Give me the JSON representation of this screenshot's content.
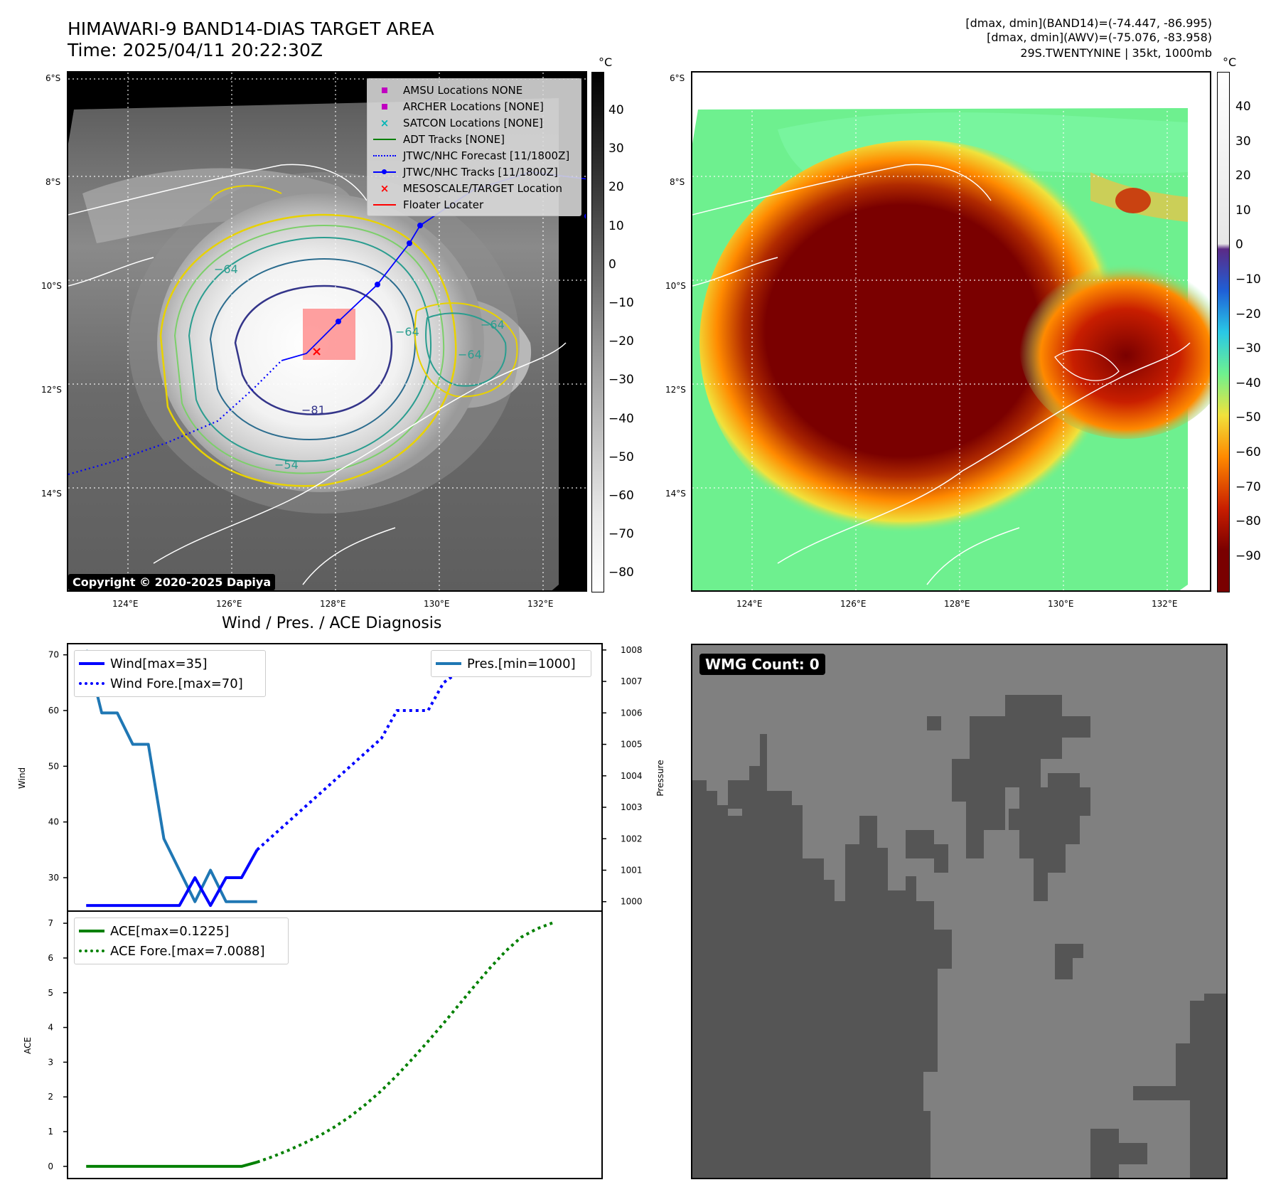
{
  "header": {
    "title_line1": "HIMAWARI-9 BAND14-DIAS TARGET AREA",
    "title_line2": "Time: 2025/04/11 20:22:30Z",
    "info_line1": "[dmax, dmin](BAND14)=(-74.447, -86.995)",
    "info_line2": "[dmax, dmin](AWV)=(-75.076, -83.958)",
    "info_line3": "29S.TWENTYNINE | 35kt, 1000mb"
  },
  "map": {
    "lat_labels": [
      "6°S",
      "8°S",
      "10°S",
      "12°S",
      "14°S"
    ],
    "lon_labels": [
      "124°E",
      "126°E",
      "128°E",
      "130°E",
      "132°E"
    ],
    "unit": "°C",
    "copyright": "Copyright © 2020-2025 Dapiya",
    "contour_labels": [
      "−64",
      "−64",
      "−64",
      "−54",
      "−81",
      "−64",
      "−64"
    ],
    "legend": [
      {
        "label": "AMSU Locations NONE",
        "symbol": "square",
        "color": "#c000c0"
      },
      {
        "label": "ARCHER Locations [NONE]",
        "symbol": "square",
        "color": "#c000c0"
      },
      {
        "label": "SATCON Locations [NONE]",
        "symbol": "x",
        "color": "#00b5b5"
      },
      {
        "label": "ADT Tracks [NONE]",
        "symbol": "line",
        "color": "#008000"
      },
      {
        "label": "JTWC/NHC Forecast [11/1800Z]",
        "symbol": "dotted",
        "color": "#0000ff"
      },
      {
        "label": "JTWC/NHC Tracks [11/1800Z]",
        "symbol": "line-dot",
        "color": "#0000ff"
      },
      {
        "label": "MESOSCALE/TARGET Location",
        "symbol": "x",
        "color": "#ff0000"
      },
      {
        "label": "Floater Locater",
        "symbol": "line",
        "color": "#ff0000"
      }
    ]
  },
  "colorbar_gray": {
    "ticks": [
      "40",
      "30",
      "20",
      "10",
      "0",
      "−10",
      "−20",
      "−30",
      "−40",
      "−50",
      "−60",
      "−70",
      "−80"
    ]
  },
  "colorbar_color": {
    "ticks": [
      "40",
      "30",
      "20",
      "10",
      "0",
      "−10",
      "−20",
      "−30",
      "−40",
      "−50",
      "−60",
      "−70",
      "−80",
      "−90"
    ],
    "colors": {
      "top": "#ffffff",
      "zero": "#5b2a86",
      "blue": "#1f5fd6",
      "cyan": "#29c8e6",
      "green": "#6ef08f",
      "yellow": "#f0e23c",
      "orange": "#ff8a00",
      "red": "#c81e00",
      "darkred": "#7a0000"
    }
  },
  "wmg": {
    "label": "WMG Count: 0",
    "colors": {
      "light": "#808080",
      "dark": "#555555"
    }
  },
  "chart_data": [
    {
      "type": "line",
      "title": "Wind / Pres. / ACE Diagnosis",
      "ylabel": "Wind",
      "ylabel_right": "Pressure",
      "ylim": [
        24,
        72
      ],
      "ylim_right": [
        999.7,
        1008.2
      ],
      "yticks": [
        30,
        40,
        50,
        60,
        70
      ],
      "yticks_right": [
        1000,
        1001,
        1002,
        1003,
        1004,
        1005,
        1006,
        1007,
        1008
      ],
      "x": [
        0,
        1,
        2,
        3,
        4,
        5,
        6,
        7,
        8,
        9,
        10,
        11,
        12,
        13,
        14,
        15,
        16,
        17,
        18,
        19,
        20,
        21,
        22,
        23,
        24,
        25,
        26,
        27,
        28,
        29,
        30
      ],
      "series": [
        {
          "name": "Wind[max=35]",
          "axis": "left",
          "style": "solid",
          "color": "#0000ff",
          "x": [
            0,
            1,
            2,
            3,
            4,
            5,
            6,
            7,
            8,
            9,
            10,
            11
          ],
          "values": [
            25,
            25,
            25,
            25,
            25,
            25,
            25,
            30,
            25,
            30,
            30,
            35
          ]
        },
        {
          "name": "Wind Fore.[max=70]",
          "axis": "left",
          "style": "dotted",
          "color": "#0000ff",
          "x": [
            11,
            12,
            13,
            14,
            15,
            16,
            17,
            18,
            19,
            20,
            21,
            22,
            23,
            24,
            25,
            26,
            27,
            28,
            29,
            30
          ],
          "values": [
            35,
            37.5,
            40,
            42.5,
            45,
            47.5,
            50,
            52.5,
            55,
            60,
            60,
            60,
            65,
            67,
            69,
            70,
            70,
            70,
            70,
            67
          ]
        },
        {
          "name": "Pres.[min=1000]",
          "axis": "right",
          "style": "solid",
          "color": "#1f77b4",
          "x": [
            0,
            1,
            2,
            3,
            4,
            5,
            6,
            7,
            8,
            9,
            10,
            11
          ],
          "values": [
            1008,
            1006,
            1006,
            1005,
            1005,
            1002,
            1001,
            1000,
            1001,
            1000,
            1000,
            1000
          ]
        }
      ]
    },
    {
      "type": "line",
      "ylabel": "ACE",
      "ylim": [
        -0.35,
        7.35
      ],
      "yticks": [
        0,
        1,
        2,
        3,
        4,
        5,
        6,
        7
      ],
      "series": [
        {
          "name": "ACE[max=0.1225]",
          "style": "solid",
          "color": "#008000",
          "x": [
            0,
            1,
            2,
            3,
            4,
            5,
            6,
            7,
            8,
            9,
            10,
            11
          ],
          "values": [
            0,
            0,
            0,
            0,
            0,
            0,
            0,
            0,
            0,
            0,
            0,
            0.1225
          ]
        },
        {
          "name": "ACE Fore.[max=7.0088]",
          "style": "dotted",
          "color": "#008000",
          "x": [
            11,
            12,
            13,
            14,
            15,
            16,
            17,
            18,
            19,
            20,
            21,
            22,
            23,
            24,
            25,
            26,
            27,
            28,
            29,
            30
          ],
          "values": [
            0.1225,
            0.28,
            0.46,
            0.66,
            0.88,
            1.14,
            1.44,
            1.79,
            2.18,
            2.62,
            3.1,
            3.6,
            4.12,
            4.66,
            5.2,
            5.72,
            6.2,
            6.6,
            6.84,
            7.0088
          ]
        }
      ]
    }
  ]
}
